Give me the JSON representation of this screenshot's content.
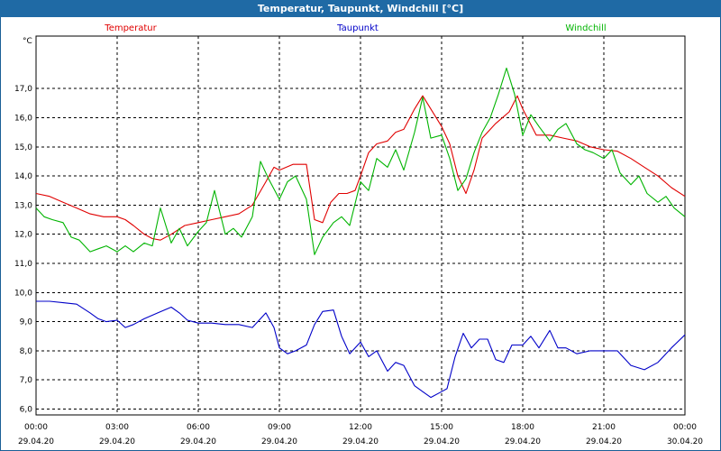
{
  "chart_data": {
    "type": "line",
    "title": "Temperatur, Taupunkt, Windchill [°C]",
    "yunit": "°C",
    "ylim": [
      5.8,
      18.8
    ],
    "yticks": [
      6,
      7,
      8,
      9,
      10,
      11,
      12,
      13,
      14,
      15,
      16,
      17
    ],
    "ytick_labels": [
      "6,0",
      "7,0",
      "8,0",
      "9,0",
      "10,0",
      "11,0",
      "12,0",
      "13,0",
      "14,0",
      "15,0",
      "16,0",
      "17,0"
    ],
    "xlim": [
      0,
      24
    ],
    "xticks": [
      0,
      3,
      6,
      9,
      12,
      15,
      18,
      21,
      24
    ],
    "xtick_time_labels": [
      "00:00",
      "03:00",
      "06:00",
      "09:00",
      "12:00",
      "15:00",
      "18:00",
      "21:00",
      "00:00"
    ],
    "xtick_date_labels": [
      "29.04.20",
      "29.04.20",
      "29.04.20",
      "29.04.20",
      "29.04.20",
      "29.04.20",
      "29.04.20",
      "29.04.20",
      "30.04.20"
    ],
    "grid": true,
    "series": [
      {
        "name": "Temperatur",
        "color": "#e00000",
        "x": [
          0,
          0.5,
          1,
          1.5,
          2,
          2.5,
          3,
          3.3,
          3.6,
          4,
          4.3,
          4.6,
          5,
          5.5,
          6,
          6.5,
          7,
          7.5,
          8,
          8.5,
          8.8,
          9,
          9.5,
          10,
          10.3,
          10.6,
          10.9,
          11.2,
          11.5,
          11.8,
          12,
          12.3,
          12.6,
          13,
          13.3,
          13.6,
          14,
          14.3,
          14.6,
          15,
          15.3,
          15.6,
          15.9,
          16.2,
          16.5,
          17,
          17.5,
          17.8,
          18,
          18.5,
          19,
          19.5,
          20,
          20.5,
          21,
          21.5,
          22,
          22.5,
          23,
          23.5,
          24
        ],
        "values": [
          13.4,
          13.3,
          13.1,
          12.9,
          12.7,
          12.6,
          12.6,
          12.5,
          12.3,
          12.0,
          11.85,
          11.8,
          12.0,
          12.3,
          12.4,
          12.5,
          12.6,
          12.7,
          13.0,
          13.8,
          14.3,
          14.2,
          14.4,
          14.4,
          12.5,
          12.4,
          13.1,
          13.4,
          13.4,
          13.5,
          14.0,
          14.8,
          15.1,
          15.2,
          15.5,
          15.6,
          16.3,
          16.75,
          16.3,
          15.7,
          15.1,
          14.0,
          13.4,
          14.2,
          15.3,
          15.8,
          16.2,
          16.75,
          16.3,
          15.4,
          15.4,
          15.3,
          15.2,
          15.0,
          14.9,
          14.85,
          14.6,
          14.3,
          14.0,
          13.6,
          13.3
        ]
      },
      {
        "name": "Taupunkt",
        "color": "#0000c8",
        "x": [
          0,
          0.5,
          1,
          1.5,
          2,
          2.3,
          2.6,
          3,
          3.3,
          3.6,
          4,
          4.5,
          5,
          5.3,
          5.6,
          6,
          6.5,
          7,
          7.5,
          8,
          8.5,
          8.8,
          9,
          9.3,
          9.6,
          10,
          10.3,
          10.6,
          11,
          11.3,
          11.6,
          12,
          12.3,
          12.6,
          13,
          13.3,
          13.6,
          14,
          14.3,
          14.6,
          15,
          15.2,
          15.5,
          15.8,
          16.1,
          16.4,
          16.7,
          17,
          17.3,
          17.6,
          18,
          18.3,
          18.6,
          19,
          19.3,
          19.6,
          20,
          20.5,
          21,
          21.5,
          22,
          22.5,
          23,
          23.5,
          24
        ],
        "values": [
          9.7,
          9.7,
          9.65,
          9.6,
          9.3,
          9.1,
          9.0,
          9.05,
          8.8,
          8.9,
          9.1,
          9.3,
          9.5,
          9.3,
          9.05,
          8.95,
          8.95,
          8.9,
          8.9,
          8.8,
          9.3,
          8.8,
          8.1,
          7.9,
          8.0,
          8.2,
          8.9,
          9.35,
          9.4,
          8.5,
          7.9,
          8.3,
          7.8,
          8.0,
          7.3,
          7.6,
          7.5,
          6.8,
          6.6,
          6.4,
          6.6,
          6.7,
          7.8,
          8.6,
          8.1,
          8.4,
          8.4,
          7.7,
          7.6,
          8.2,
          8.2,
          8.5,
          8.1,
          8.7,
          8.1,
          8.1,
          7.9,
          8.0,
          8.0,
          8.0,
          7.5,
          7.35,
          7.6,
          8.1,
          8.55
        ]
      },
      {
        "name": "Windchill",
        "color": "#00b400",
        "x": [
          0,
          0.3,
          0.6,
          1,
          1.3,
          1.6,
          2,
          2.3,
          2.6,
          3,
          3.3,
          3.6,
          4,
          4.3,
          4.6,
          5,
          5.3,
          5.6,
          6,
          6.3,
          6.6,
          7,
          7.3,
          7.6,
          8,
          8.3,
          8.6,
          9,
          9.3,
          9.6,
          10,
          10.3,
          10.6,
          11,
          11.3,
          11.6,
          12,
          12.3,
          12.6,
          13,
          13.3,
          13.6,
          14,
          14.3,
          14.6,
          15,
          15.3,
          15.6,
          15.9,
          16.2,
          16.5,
          16.8,
          17.1,
          17.4,
          17.7,
          18,
          18.3,
          18.6,
          19,
          19.3,
          19.6,
          20,
          20.3,
          20.6,
          21,
          21.3,
          21.6,
          22,
          22.3,
          22.6,
          23,
          23.3,
          23.6,
          24
        ],
        "values": [
          12.9,
          12.6,
          12.5,
          12.4,
          11.9,
          11.8,
          11.4,
          11.5,
          11.6,
          11.4,
          11.6,
          11.4,
          11.7,
          11.6,
          12.9,
          11.7,
          12.2,
          11.6,
          12.1,
          12.4,
          13.5,
          12.0,
          12.2,
          11.9,
          12.6,
          14.5,
          13.9,
          13.2,
          13.8,
          14.0,
          13.2,
          11.3,
          11.9,
          12.4,
          12.6,
          12.3,
          13.8,
          13.5,
          14.6,
          14.3,
          14.9,
          14.2,
          15.5,
          16.7,
          15.3,
          15.4,
          14.6,
          13.5,
          13.9,
          14.8,
          15.5,
          16.0,
          16.8,
          17.7,
          16.8,
          15.4,
          16.1,
          15.7,
          15.2,
          15.6,
          15.8,
          15.1,
          14.9,
          14.8,
          14.6,
          14.9,
          14.1,
          13.7,
          14.0,
          13.4,
          13.1,
          13.3,
          12.9,
          12.6
        ]
      }
    ]
  }
}
